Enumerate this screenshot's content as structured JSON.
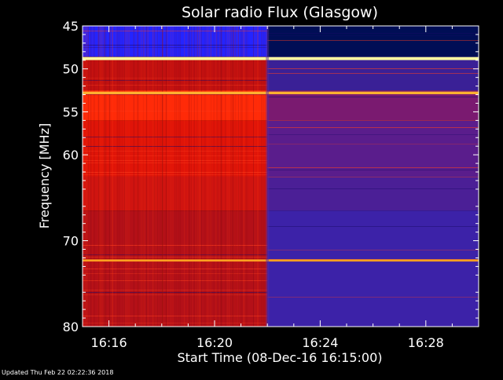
{
  "footer": {
    "updated": "Updated Thu Feb 22 02:22:36 2018"
  },
  "chart_data": {
    "type": "heatmap",
    "title": "Solar radio Flux (Glasgow)",
    "xlabel": "Start Time (08-Dec-16 16:15:00)",
    "ylabel": "Frequency [MHz]",
    "xlim_minutes": [
      0,
      15
    ],
    "ylim_mhz": [
      45,
      80
    ],
    "y_inverted": true,
    "x_ticks": [
      {
        "minute": 1,
        "label": "16:16"
      },
      {
        "minute": 5,
        "label": "16:20"
      },
      {
        "minute": 9,
        "label": "16:24"
      },
      {
        "minute": 13,
        "label": "16:28"
      }
    ],
    "y_ticks": [
      {
        "mhz": 45,
        "label": "45"
      },
      {
        "mhz": 50,
        "label": "50"
      },
      {
        "mhz": 55,
        "label": "55"
      },
      {
        "mhz": 60,
        "label": "60"
      },
      {
        "mhz": 70,
        "label": "70"
      },
      {
        "mhz": 80,
        "label": "80"
      }
    ],
    "regime_change_minute": 7.0,
    "background_regions": [
      {
        "from_mhz": 45.0,
        "to_mhz": 48.6,
        "before": "#2424ff",
        "after": "#000e55"
      },
      {
        "from_mhz": 48.6,
        "to_mhz": 52.5,
        "before": "#c21010",
        "after": "#3a2096"
      },
      {
        "from_mhz": 52.5,
        "to_mhz": 56.0,
        "before": "#ff2a08",
        "after": "#7a1a70"
      },
      {
        "from_mhz": 56.0,
        "to_mhz": 62.5,
        "before": "#e01408",
        "after": "#5a1d8c"
      },
      {
        "from_mhz": 62.5,
        "to_mhz": 66.5,
        "before": "#d01410",
        "after": "#4b1f96"
      },
      {
        "from_mhz": 66.5,
        "to_mhz": 80.0,
        "before": "#b41018",
        "after": "#3c22a8"
      }
    ],
    "emission_lines": [
      {
        "mhz": 48.8,
        "color": "#ffffa0",
        "width_mhz": 0.35
      },
      {
        "mhz": 52.8,
        "color": "#ffb030",
        "width_mhz": 0.3
      },
      {
        "mhz": 72.3,
        "color": "#ffa020",
        "width_mhz": 0.25
      }
    ],
    "colors": {
      "high": "#ffffa0",
      "mid": "#ff2000",
      "low": "#2020ff",
      "none": "#000033"
    }
  }
}
